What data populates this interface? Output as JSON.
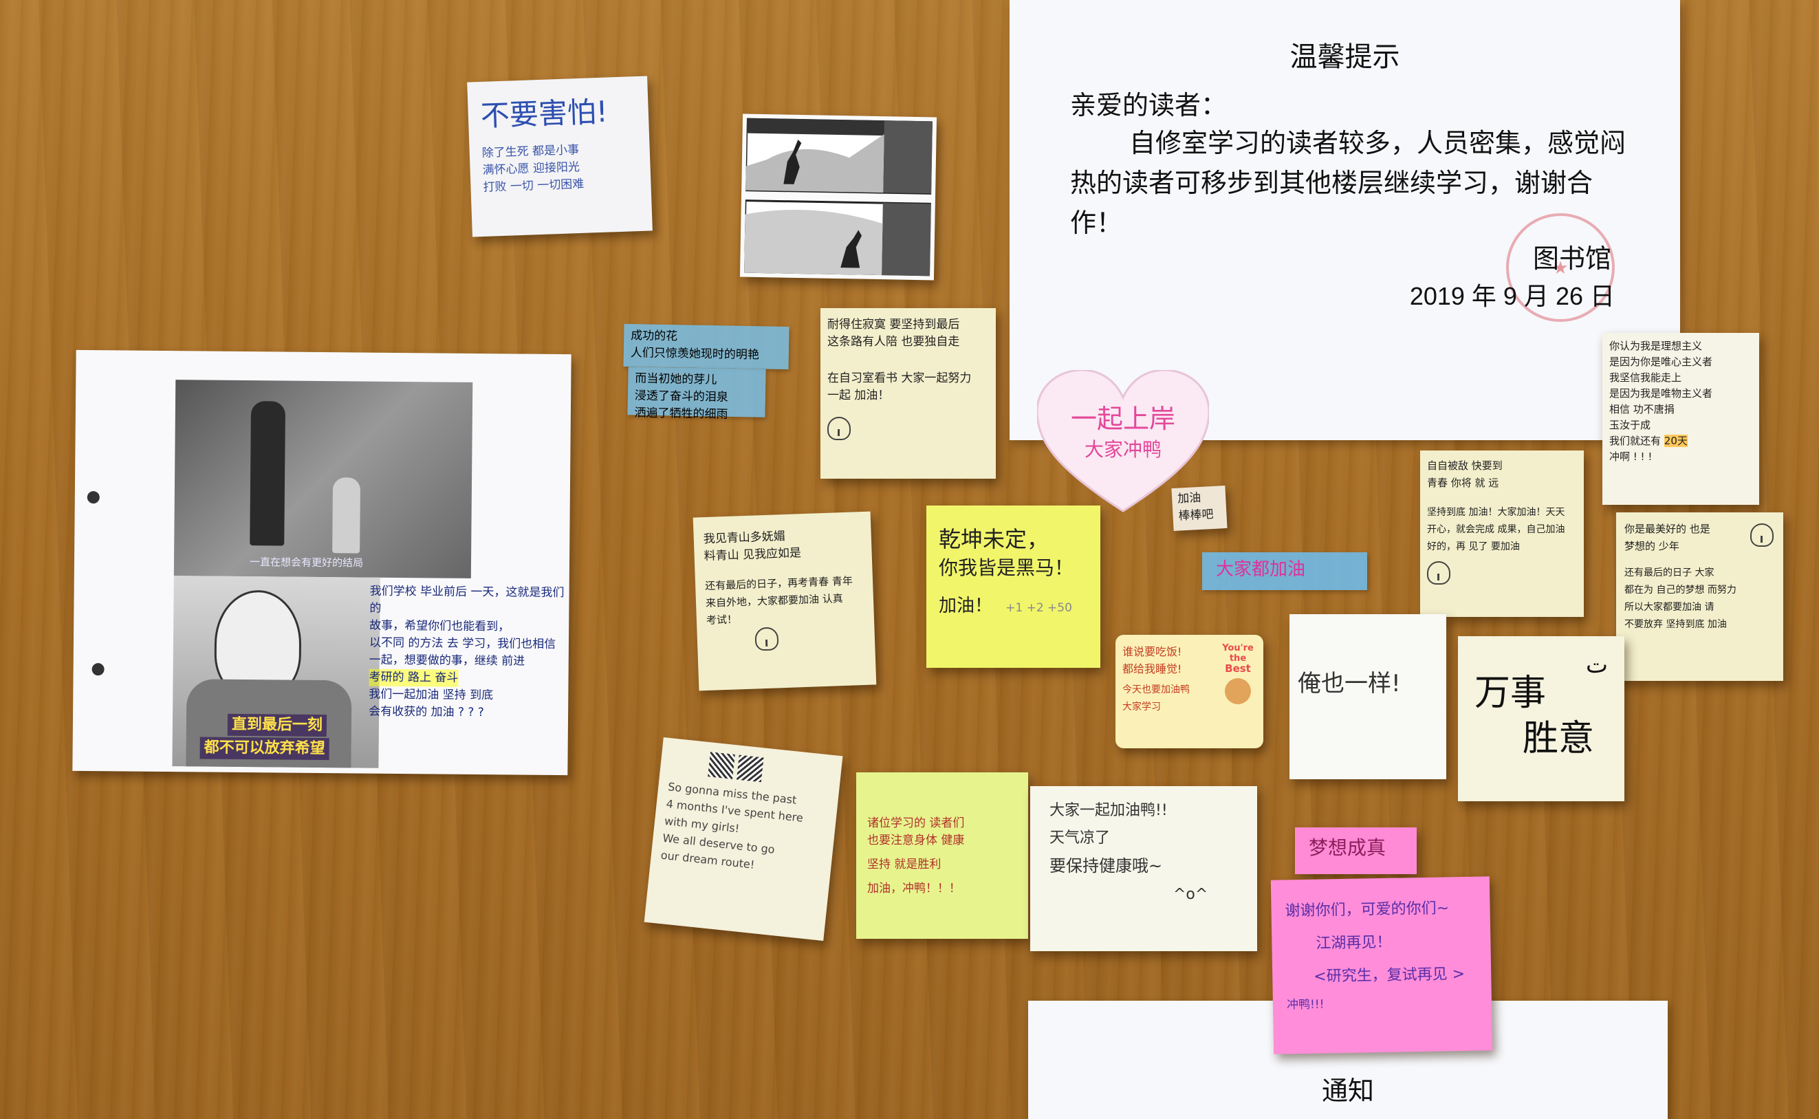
{
  "notice_main": {
    "title": "温馨提示",
    "greeting": "亲爱的读者：",
    "body": "自修室学习的读者较多，人员密集，感觉闷热的读者可移步到其他楼层继续学习，谢谢合作！",
    "signature": "图书馆",
    "date": "2019 年 9 月 26 日"
  },
  "notice_bottom": {
    "title": "通知"
  },
  "notes": {
    "dont_fear": {
      "heading": "不要害怕!",
      "line1": "除了生死 都是小事",
      "line2": "满怀心愿 迎接阳光",
      "line3": "打败 一切 一切困难"
    },
    "blue_tape": {
      "line1": "成功的花",
      "line2": "人们只惊羡她现时的明艳",
      "line3": "而当初她的芽儿",
      "line4": "浸透了奋斗的泪泉",
      "line5": "洒遍了牺牲的细雨"
    },
    "lined_a": {
      "line1": "耐得住寂寞 要坚持到最后",
      "line2": "这条路有人陪 也要独自走",
      "line3": "在自习室看书 大家一起努力",
      "line4": "一起 加油！"
    },
    "heart": {
      "line1": "一起上岸",
      "line2": "大家冲鸭"
    },
    "lined_right": {
      "line1": "你认为我是理想主义",
      "line2": "是因为你是唯心主义者",
      "line3": "我坚信我能走上",
      "line4": "是因为我是唯物主义者",
      "line5": "相信 功不唐捐",
      "line6": "玉汝于成",
      "line7": "我们就还有",
      "line8": "20天",
      "line9": "冲啊 ! ! !"
    },
    "lined_b": {
      "line1": "我见青山多妩媚",
      "line2": "料青山 见我应如是",
      "line3": "还有最后的日子，再考青春 青年",
      "line4": "来自外地，大家都要加油 认真",
      "line5": "考试！"
    },
    "yellow": {
      "line1": "乾坤未定，",
      "line2": "你我皆是黑马！",
      "line3": "加油！",
      "line4": "+1 +2 +50"
    },
    "small_tag": {
      "line1": "加油",
      "line2": "棒棒吧"
    },
    "blue_label": {
      "text": "大家都加油"
    },
    "lined_c": {
      "line1": "自自被敌 快要到",
      "line2": "青春 你将 就 远",
      "line3": "坚持到底 加油！大家加油！天天",
      "line4": "开心，就会完成 成果，自己加油",
      "line5": "好的，再 见了 要加油"
    },
    "lined_d": {
      "line1": "你是最美好的 也是",
      "line2": "梦想的 少年",
      "line3": "还有最后的日子 大家",
      "line4": "都在为 自己的梦想 而努力",
      "line5": "所以大家都要加油 请",
      "line6": "不要放弃 坚持到底 加油"
    },
    "sticker": {
      "line1": "谁说要吃饭!",
      "line2": "都给我睡觉!",
      "line3": "今天也要加油鸭",
      "line4": "大家学习",
      "badge1": "You're",
      "badge2": "the",
      "badge3": "Best"
    },
    "same": {
      "text": "俺也一样!"
    },
    "wanshi": {
      "line1": "万事",
      "line2": "胜意"
    },
    "english": {
      "line1": "So gonna miss the past",
      "line2": "4 months I've spent here",
      "line3": "with my girls!",
      "line4": "We all deserve to go",
      "line5": "our dream route!"
    },
    "green": {
      "line1": "诸位学习的 读者们",
      "line2": "也要注意身体 健康",
      "line3": "坚持 就是胜利",
      "line4": "加油，冲鸭！！！"
    },
    "white_sq": {
      "line1": "大家一起加油鸭!!",
      "line2": "天气凉了",
      "line3": "要保持健康哦~",
      "line4": "^o^"
    },
    "pink_label": {
      "text": "梦想成真"
    },
    "pink": {
      "line1": "谢谢你们，可爱的你们~",
      "line2": "江湖再见！",
      "line3": "<研究生，复试再见 >",
      "line4": "冲鸭!!!"
    },
    "photo_left": {
      "caption_top": "一直在想会有更好的结局",
      "body1": "我们学校 毕业前后 一天，这就是我们的",
      "body2": "故事，希望你们也能看到，",
      "body3": "以不同 的方法 去 学习，我们也相信",
      "body4": "一起，想要做的事，继续 前进",
      "body5": "考研的 路上 奋斗",
      "body6": "我们一起加油 坚持 到底",
      "body7": "会有收获的 加油 ? ? ?",
      "caption_bottom1": "直到最后一刻",
      "caption_bottom2": "都不可以放弃希望"
    }
  },
  "colors": {
    "wood": "#a66d25",
    "paper_white": "#f7f8fb",
    "yellow_note": "#f1f56a",
    "green_note": "#e7f48e",
    "pink_note": "#ff8dd9",
    "cream_note": "#f3efcc",
    "blue_tape": "#87c7ea"
  }
}
